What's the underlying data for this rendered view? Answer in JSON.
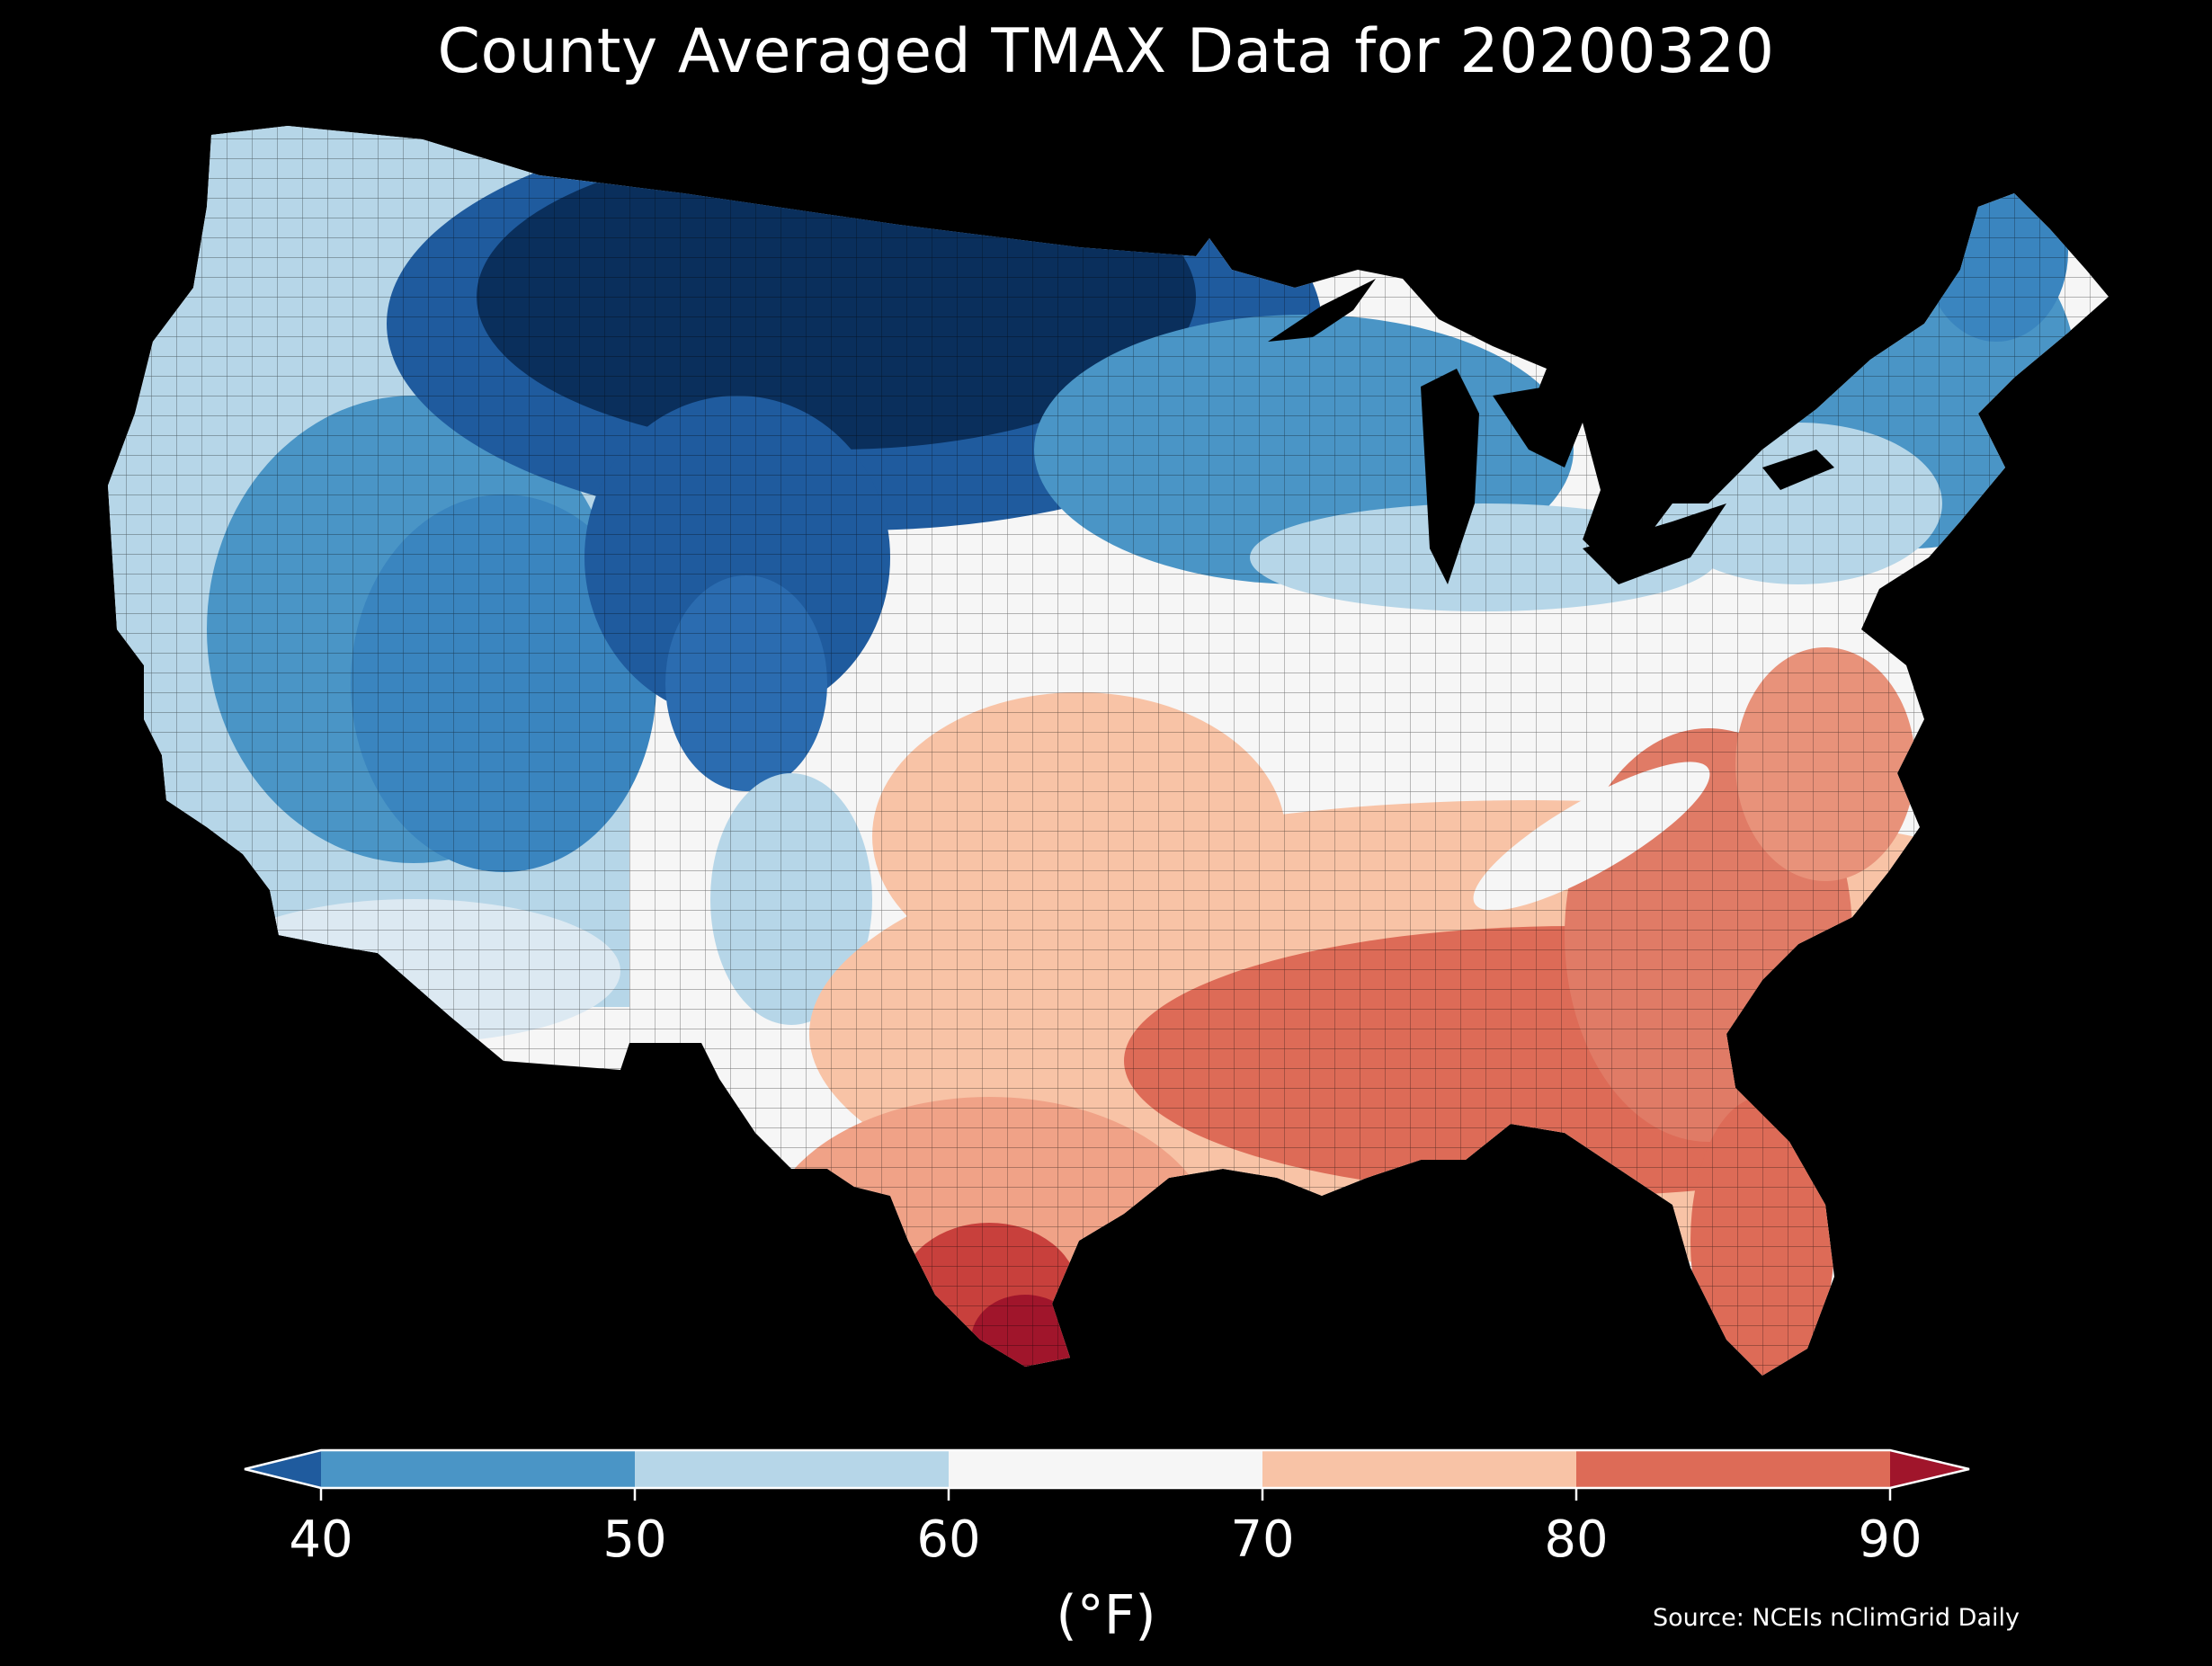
{
  "title": "County Averaged TMAX Data for 20200320",
  "source": "Source: NCEIs nClimGrid Daily",
  "colorbar": {
    "label": "(°F)",
    "ticks": [
      "40",
      "50",
      "60",
      "70",
      "80",
      "90"
    ],
    "tick_values": [
      40,
      50,
      60,
      70,
      80,
      90
    ],
    "extend": "both",
    "bins": [
      {
        "range": "<40",
        "color": "#1f5b9e"
      },
      {
        "range": "40-50",
        "color": "#4a95c6"
      },
      {
        "range": "50-60",
        "color": "#b6d6e8"
      },
      {
        "range": "60-70",
        "color": "#f6f6f6"
      },
      {
        "range": "70-80",
        "color": "#f8c3a6"
      },
      {
        "range": "80-90",
        "color": "#dd6b57"
      },
      {
        "range": ">90",
        "color": "#a0152b"
      }
    ]
  },
  "map": {
    "region": "contiguous United States",
    "background": "#000000",
    "boundaries": "county"
  }
}
